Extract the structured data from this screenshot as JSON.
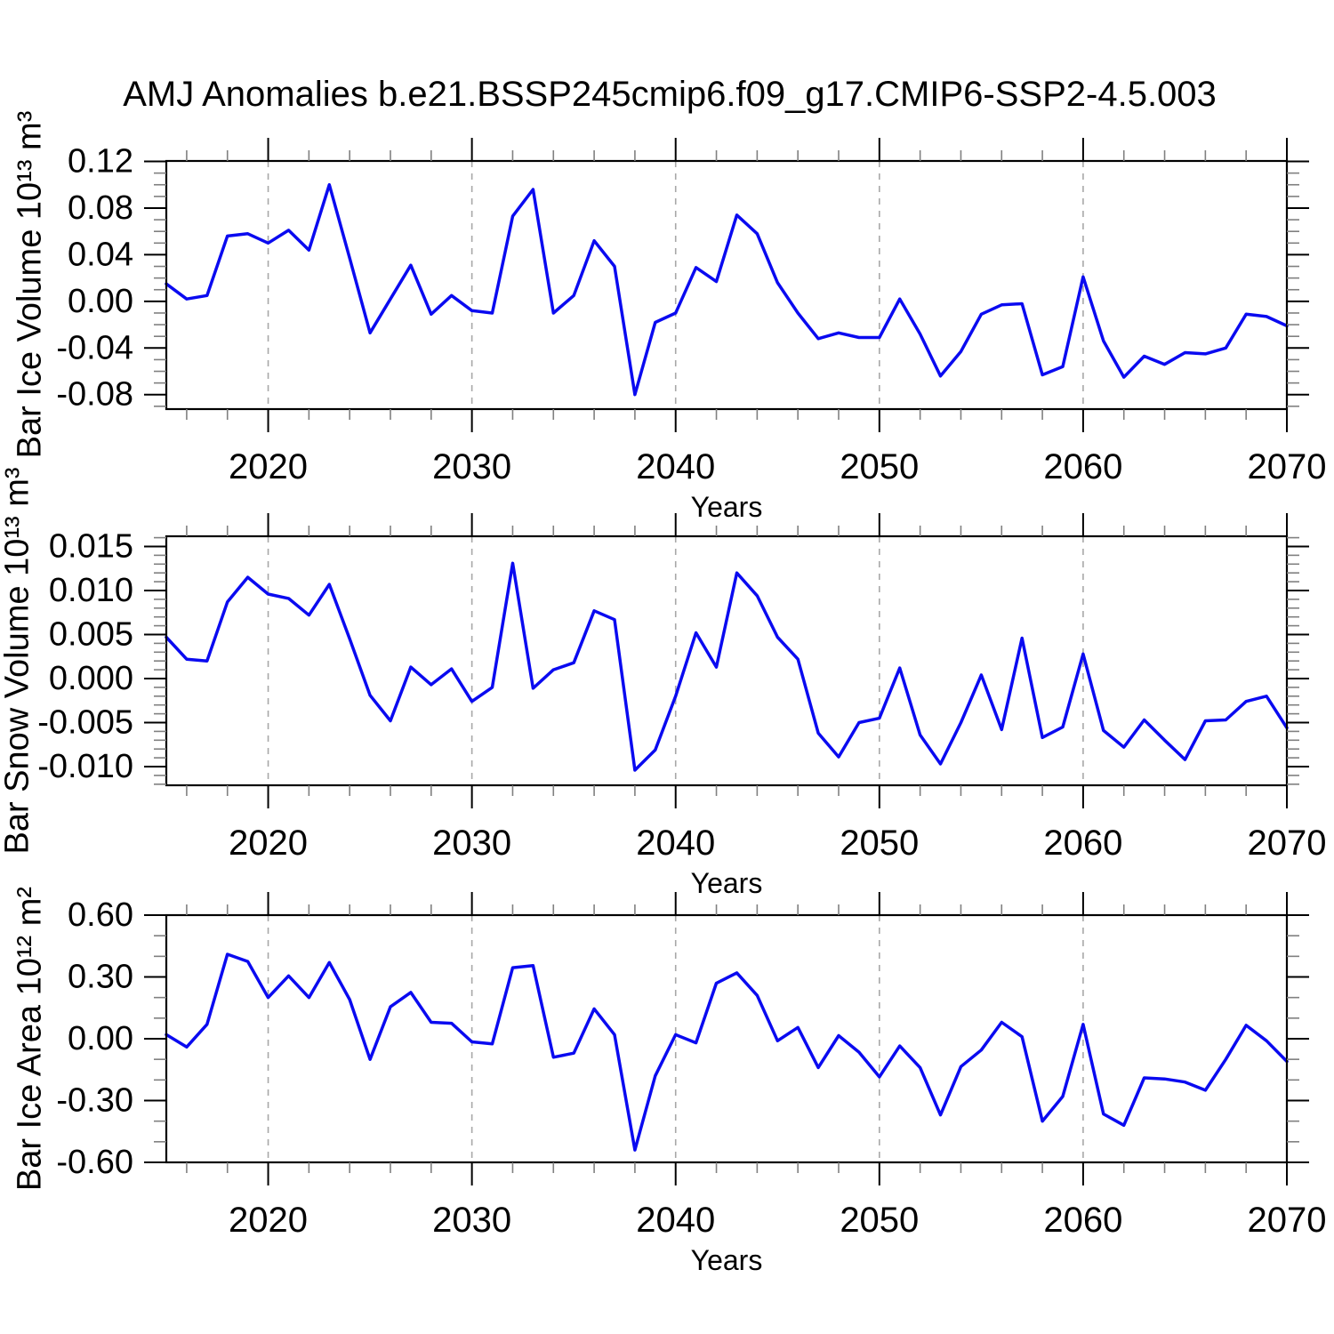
{
  "title": "AMJ Anomalies b.e21.BSSP245cmip6.f09_g17.CMIP6-SSP2-4.5.003",
  "line_color": "#0a0af0",
  "grid_color": "#a8a8a8",
  "axis_color": "#000000",
  "minor_tick_color": "#808080",
  "chart_data": [
    {
      "id": "ice-volume",
      "type": "line",
      "ylabel": "Bar Ice Volume 10¹³ m³",
      "xlabel": "Years",
      "x_start": 2015,
      "x_end": 2070,
      "x_step": 1,
      "xlim": [
        2015,
        2070
      ],
      "ylim": [
        -0.0924,
        0.1204
      ],
      "ytick_values": [
        0.12,
        0.08,
        0.04,
        0.0,
        -0.04,
        -0.08
      ],
      "ytick_labels": [
        "0.12",
        "0.08",
        "0.04",
        "0.00",
        "-0.04",
        "-0.08"
      ],
      "y_major_step": 0.04,
      "y_minor_step": 0.01,
      "xtick_values": [
        2020,
        2030,
        2040,
        2050,
        2060,
        2070
      ],
      "xtick_labels": [
        "2020",
        "2030",
        "2040",
        "2050",
        "2060",
        "2070"
      ],
      "x_minor_step": 2,
      "grid_years": [
        2020,
        2030,
        2040,
        2050,
        2060
      ],
      "grid": true,
      "legend": null,
      "values": [
        0.015,
        0.002,
        0.005,
        0.056,
        0.058,
        0.05,
        0.061,
        0.044,
        0.1,
        0.037,
        -0.027,
        0.002,
        0.031,
        -0.011,
        0.005,
        -0.008,
        -0.01,
        0.073,
        0.096,
        -0.01,
        0.005,
        0.052,
        0.03,
        -0.08,
        -0.018,
        -0.01,
        0.029,
        0.017,
        0.074,
        0.058,
        0.016,
        -0.01,
        -0.032,
        -0.027,
        -0.031,
        -0.031,
        0.002,
        -0.028,
        -0.064,
        -0.043,
        -0.011,
        -0.003,
        -0.002,
        -0.063,
        -0.056,
        0.021,
        -0.034,
        -0.065,
        -0.047,
        -0.054,
        -0.044,
        -0.045,
        -0.04,
        -0.011,
        -0.013,
        -0.021
      ]
    },
    {
      "id": "snow-volume",
      "type": "line",
      "ylabel": "Bar Snow Volume 10¹³ m³",
      "xlabel": "Years",
      "x_start": 2015,
      "x_end": 2070,
      "x_step": 1,
      "xlim": [
        2015,
        2070
      ],
      "ylim": [
        -0.01212,
        0.01616
      ],
      "ytick_values": [
        0.015,
        0.01,
        0.005,
        0.0,
        -0.005,
        -0.01
      ],
      "ytick_labels": [
        "0.015",
        "0.010",
        "0.005",
        "0.000",
        "-0.005",
        "-0.010"
      ],
      "y_major_step": 0.005,
      "y_minor_step": 0.001,
      "xtick_values": [
        2020,
        2030,
        2040,
        2050,
        2060,
        2070
      ],
      "xtick_labels": [
        "2020",
        "2030",
        "2040",
        "2050",
        "2060",
        "2070"
      ],
      "x_minor_step": 2,
      "grid_years": [
        2020,
        2030,
        2040,
        2050,
        2060
      ],
      "grid": true,
      "legend": null,
      "values": [
        0.0047,
        0.0022,
        0.002,
        0.0087,
        0.0115,
        0.0096,
        0.0091,
        0.0072,
        0.0107,
        0.0045,
        -0.0019,
        -0.0048,
        0.0013,
        -0.0007,
        0.0011,
        -0.0026,
        -0.001,
        0.0131,
        -0.0011,
        0.001,
        0.0018,
        0.0077,
        0.0067,
        -0.0104,
        -0.0081,
        -0.002,
        0.0052,
        0.0013,
        0.012,
        0.0094,
        0.0047,
        0.0022,
        -0.0062,
        -0.0089,
        -0.005,
        -0.0045,
        0.0012,
        -0.0064,
        -0.0097,
        -0.005,
        0.0004,
        -0.0058,
        0.0046,
        -0.0067,
        -0.0055,
        0.0028,
        -0.0059,
        -0.0078,
        -0.0047,
        -0.007,
        -0.0092,
        -0.0048,
        -0.0047,
        -0.0026,
        -0.002,
        -0.0056
      ]
    },
    {
      "id": "ice-area",
      "type": "line",
      "ylabel": "Bar Ice Area 10¹² m²",
      "xlabel": "Years",
      "x_start": 2015,
      "x_end": 2070,
      "x_step": 1,
      "xlim": [
        2015,
        2070
      ],
      "ylim": [
        -0.6,
        0.6
      ],
      "ytick_values": [
        0.6,
        0.3,
        0.0,
        -0.3,
        -0.6
      ],
      "ytick_labels": [
        "0.60",
        "0.30",
        "0.00",
        "-0.30",
        "-0.60"
      ],
      "y_major_step": 0.3,
      "y_minor_step": 0.1,
      "xtick_values": [
        2020,
        2030,
        2040,
        2050,
        2060,
        2070
      ],
      "xtick_labels": [
        "2020",
        "2030",
        "2040",
        "2050",
        "2060",
        "2070"
      ],
      "x_minor_step": 2,
      "grid_years": [
        2020,
        2030,
        2040,
        2050,
        2060
      ],
      "grid": true,
      "legend": null,
      "values": [
        0.02,
        -0.04,
        0.07,
        0.41,
        0.375,
        0.2,
        0.305,
        0.2,
        0.37,
        0.19,
        -0.1,
        0.155,
        0.225,
        0.08,
        0.075,
        -0.015,
        -0.025,
        0.345,
        0.355,
        -0.09,
        -0.07,
        0.145,
        0.02,
        -0.54,
        -0.18,
        0.02,
        -0.02,
        0.27,
        0.32,
        0.21,
        -0.01,
        0.055,
        -0.14,
        0.015,
        -0.065,
        -0.185,
        -0.035,
        -0.14,
        -0.37,
        -0.135,
        -0.055,
        0.08,
        0.01,
        -0.4,
        -0.28,
        0.07,
        -0.365,
        -0.42,
        -0.19,
        -0.195,
        -0.21,
        -0.25,
        -0.1,
        0.065,
        -0.01,
        -0.11
      ]
    }
  ]
}
